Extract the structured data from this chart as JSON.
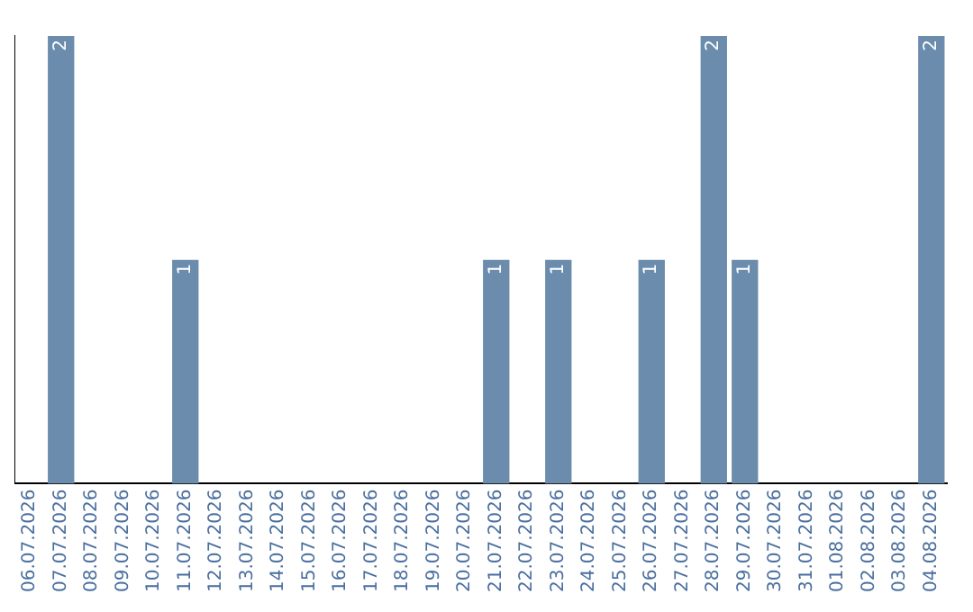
{
  "chart_data": {
    "type": "bar",
    "categories": [
      "06.07.2026",
      "07.07.2026",
      "08.07.2026",
      "09.07.2026",
      "10.07.2026",
      "11.07.2026",
      "12.07.2026",
      "13.07.2026",
      "14.07.2026",
      "15.07.2026",
      "16.07.2026",
      "17.07.2026",
      "18.07.2026",
      "19.07.2026",
      "20.07.2026",
      "21.07.2026",
      "22.07.2026",
      "23.07.2026",
      "24.07.2026",
      "25.07.2026",
      "26.07.2026",
      "27.07.2026",
      "28.07.2026",
      "29.07.2026",
      "30.07.2026",
      "31.07.2026",
      "01.08.2026",
      "02.08.2026",
      "03.08.2026",
      "04.08.2026"
    ],
    "values": [
      null,
      2,
      null,
      null,
      null,
      1,
      null,
      null,
      null,
      null,
      null,
      null,
      null,
      null,
      null,
      1,
      null,
      1,
      null,
      null,
      1,
      null,
      2,
      1,
      null,
      null,
      null,
      null,
      null,
      2
    ],
    "color": "#6b8cac",
    "data_labels": true,
    "grid": false,
    "legend": false,
    "tick_labels": "x"
  }
}
